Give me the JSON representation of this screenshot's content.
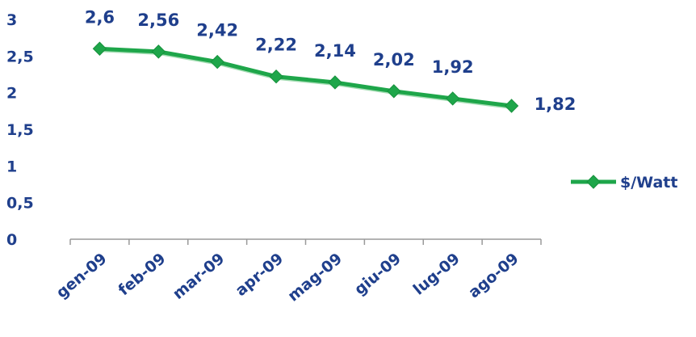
{
  "chart_data": {
    "type": "line",
    "categories": [
      "gen-09",
      "feb-09",
      "mar-09",
      "apr-09",
      "mag-09",
      "giu-09",
      "lug-09",
      "ago-09"
    ],
    "series": [
      {
        "name": "$/Watt",
        "values": [
          2.6,
          2.56,
          2.42,
          2.22,
          2.14,
          2.02,
          1.92,
          1.82
        ],
        "labels": [
          "2,6",
          "2,56",
          "2,42",
          "2,22",
          "2,14",
          "2,02",
          "1,92",
          "1,82"
        ],
        "color": "#1ea64a",
        "marker": "diamond"
      }
    ],
    "y_ticks": [
      {
        "value": 0,
        "label": "0"
      },
      {
        "value": 0.5,
        "label": "0,5"
      },
      {
        "value": 1,
        "label": "1"
      },
      {
        "value": 1.5,
        "label": "1,5"
      },
      {
        "value": 2,
        "label": "2"
      },
      {
        "value": 2.5,
        "label": "2,5"
      },
      {
        "value": 3,
        "label": "3"
      }
    ],
    "ylim": [
      0,
      3
    ],
    "grid": false,
    "legend_position": "right",
    "text_color": "#1f3f8c",
    "axis_color": "#9a9a9a"
  }
}
